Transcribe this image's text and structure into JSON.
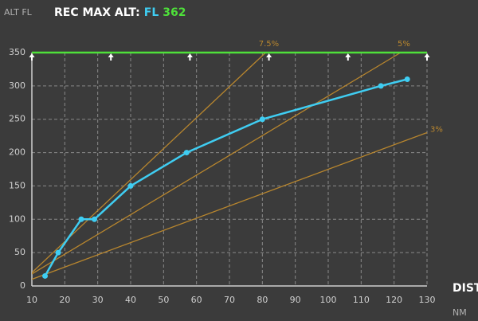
{
  "chart_data": {
    "type": "line",
    "title": "REC MAX ALT:",
    "title_unit": "FL",
    "title_value": 362,
    "y_label": "ALT FL",
    "x_label": "DIST",
    "x_unit": "NM",
    "x": [
      14,
      18,
      25,
      29,
      40,
      57,
      80,
      116,
      124
    ],
    "values": [
      15,
      50,
      100,
      100,
      150,
      200,
      250,
      300,
      310
    ],
    "color": "#3fcdf2",
    "ceiling": 350,
    "ceiling_color": "#4ee03a",
    "markers_x": [
      10,
      34,
      58,
      82,
      106,
      130
    ],
    "guides": [
      {
        "label": "7.5%",
        "x": [
          10,
          81
        ],
        "values": [
          20,
          350
        ]
      },
      {
        "label": "5%",
        "x": [
          10,
          122
        ],
        "values": [
          18,
          350
        ]
      },
      {
        "label": "3%",
        "x": [
          10,
          130
        ],
        "values": [
          10,
          230
        ]
      }
    ],
    "guide_color": "#b8862e",
    "xlim": [
      10,
      130
    ],
    "xticks": [
      10,
      20,
      30,
      40,
      50,
      60,
      70,
      80,
      90,
      100,
      110,
      120,
      130
    ],
    "ylim": [
      0,
      350
    ],
    "yticks": [
      0,
      50,
      100,
      150,
      200,
      250,
      300,
      350
    ],
    "grid": true
  }
}
